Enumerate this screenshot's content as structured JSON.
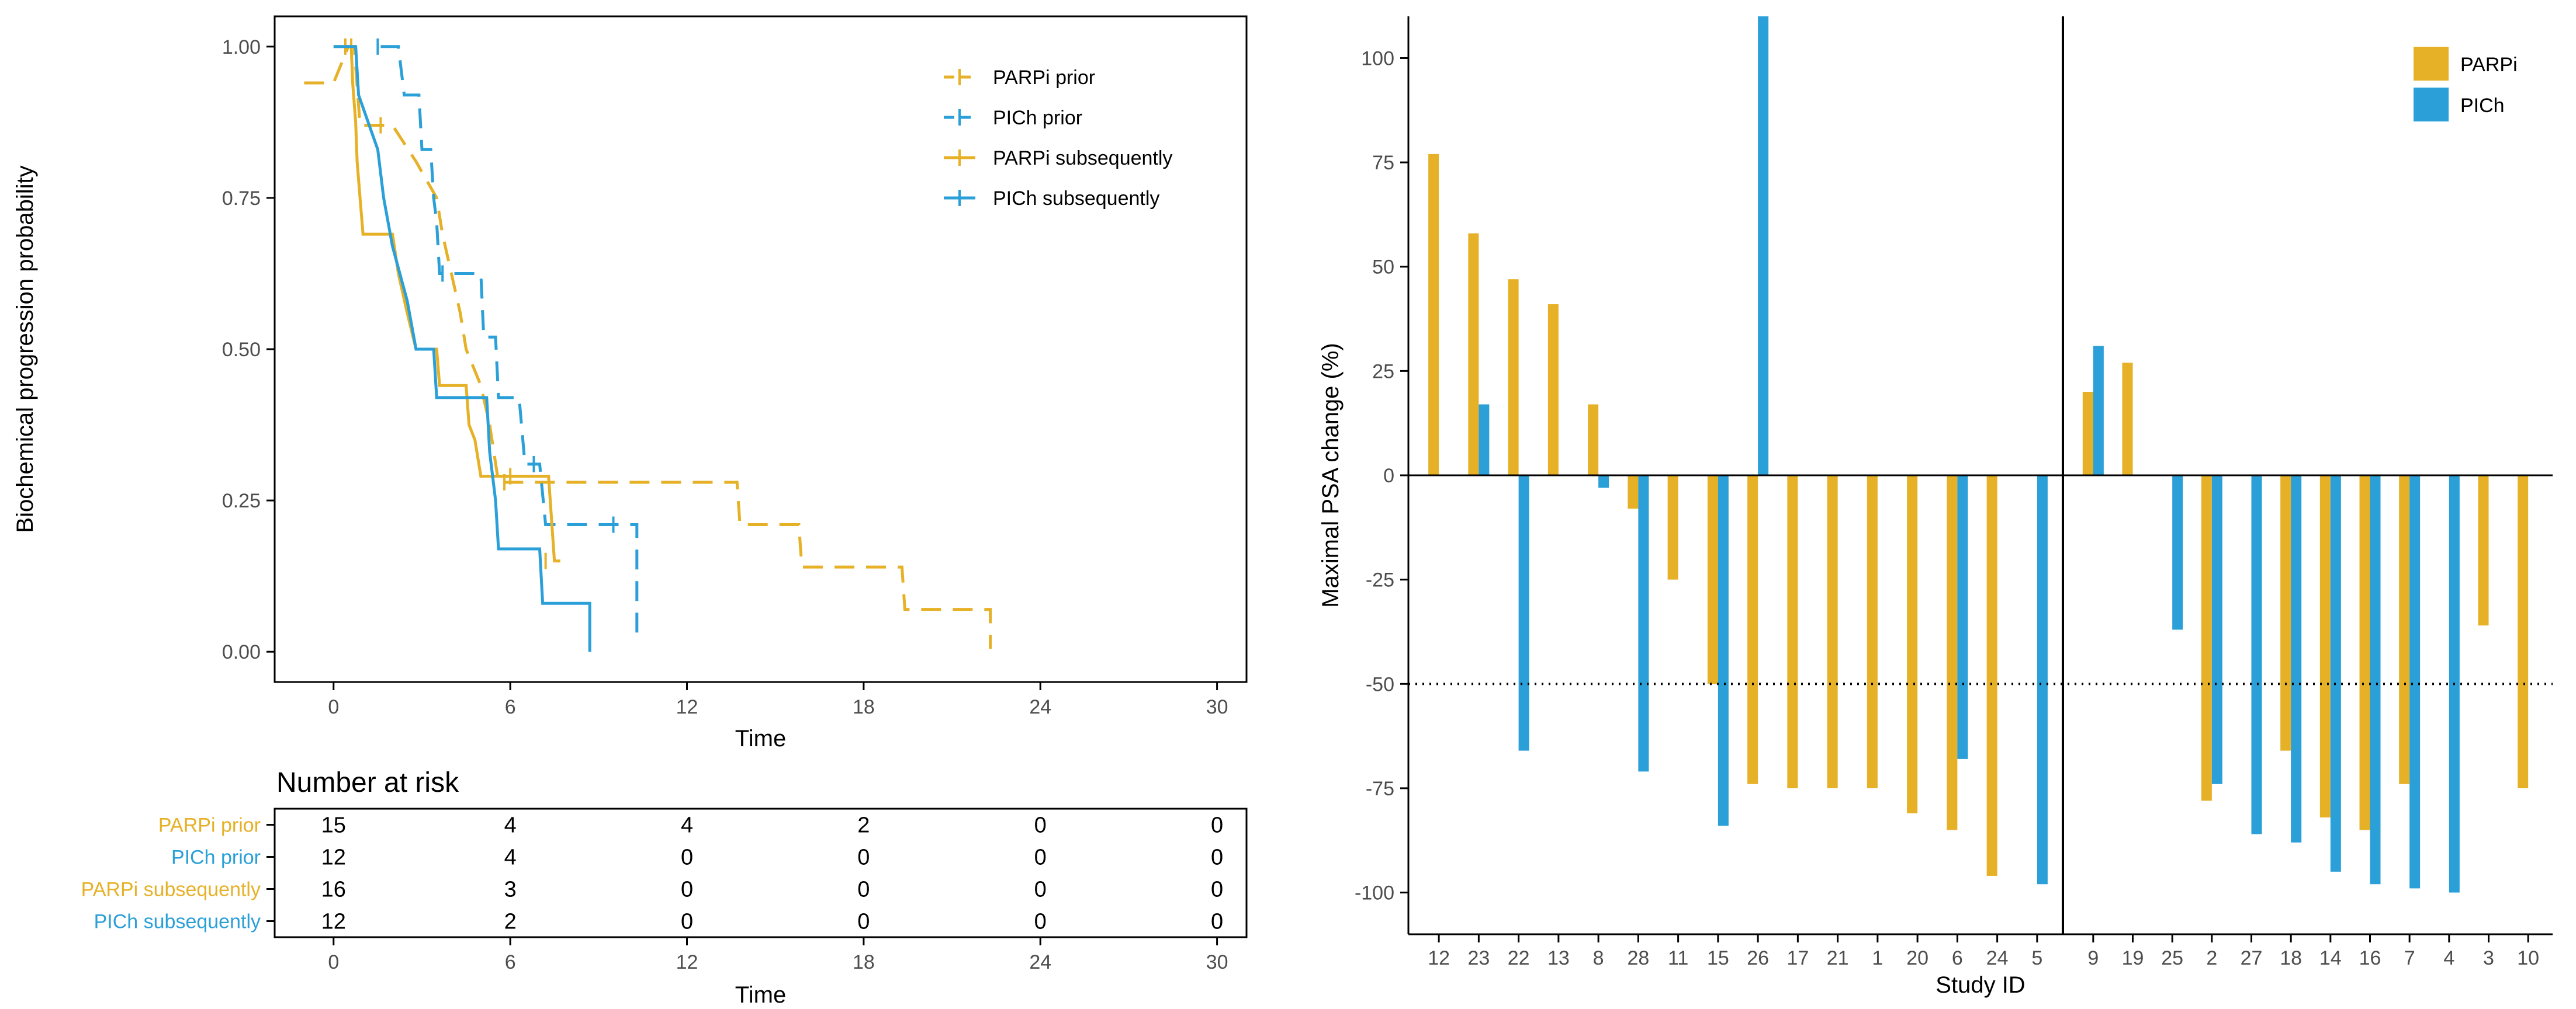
{
  "colors": {
    "parpi": "#E6B127",
    "pich": "#2A9FD8",
    "parpi_label": "#E6B127",
    "pich_label": "#2A9FD8",
    "axis": "#000000",
    "tick_text": "#4d4d4d"
  },
  "chart_data": [
    {
      "type": "line",
      "subtype": "kaplan-meier",
      "title": "",
      "xlabel": "Time",
      "ylabel": "Biochemical progression probability",
      "xlim": [
        -2,
        31
      ],
      "ylim": [
        -0.05,
        1.05
      ],
      "xticks": [
        0,
        6,
        12,
        18,
        24,
        30
      ],
      "yticks": [
        0.0,
        0.25,
        0.5,
        0.75,
        1.0
      ],
      "ytick_labels": [
        "0.00",
        "0.25",
        "0.50",
        "0.75",
        "1.00"
      ],
      "legend_position": "top-right",
      "series": [
        {
          "name": "PARPi prior",
          "color_key": "parpi",
          "dashed": true,
          "points": [
            [
              -1,
              0.94
            ],
            [
              0,
              0.94
            ],
            [
              0.5,
              1.0
            ],
            [
              0.7,
              1.0
            ],
            [
              0.9,
              0.87
            ],
            [
              2.0,
              0.87
            ],
            [
              2.8,
              0.81
            ],
            [
              3.5,
              0.75
            ],
            [
              3.7,
              0.69
            ],
            [
              4.0,
              0.625
            ],
            [
              4.3,
              0.56
            ],
            [
              4.5,
              0.5
            ],
            [
              5.0,
              0.44
            ],
            [
              5.3,
              0.375
            ],
            [
              5.6,
              0.28
            ],
            [
              13.7,
              0.28
            ],
            [
              13.8,
              0.21
            ],
            [
              15.8,
              0.21
            ],
            [
              15.9,
              0.14
            ],
            [
              19.3,
              0.14
            ],
            [
              19.4,
              0.07
            ],
            [
              22.3,
              0.07
            ],
            [
              22.3,
              0.005
            ]
          ],
          "censor": [
            [
              0.6,
              1.0
            ],
            [
              1.6,
              0.87
            ],
            [
              5.8,
              0.28
            ]
          ]
        },
        {
          "name": "PICh prior",
          "color_key": "pich",
          "dashed": true,
          "points": [
            [
              1.6,
              1.0
            ],
            [
              2.2,
              1.0
            ],
            [
              2.4,
              0.92
            ],
            [
              2.9,
              0.92
            ],
            [
              3.0,
              0.83
            ],
            [
              3.3,
              0.83
            ],
            [
              3.4,
              0.75
            ],
            [
              3.5,
              0.71
            ],
            [
              3.6,
              0.625
            ],
            [
              5.0,
              0.625
            ],
            [
              5.1,
              0.52
            ],
            [
              5.5,
              0.52
            ],
            [
              5.6,
              0.42
            ],
            [
              6.3,
              0.42
            ],
            [
              6.5,
              0.31
            ],
            [
              7.0,
              0.31
            ],
            [
              7.2,
              0.21
            ],
            [
              10.3,
              0.21
            ],
            [
              10.3,
              0.03
            ]
          ],
          "censor": [
            [
              1.5,
              1.0
            ],
            [
              3.7,
              0.625
            ],
            [
              6.8,
              0.31
            ],
            [
              9.5,
              0.21
            ]
          ]
        },
        {
          "name": "PARPi subsequently",
          "color_key": "parpi",
          "dashed": false,
          "points": [
            [
              0,
              1.0
            ],
            [
              0.6,
              1.0
            ],
            [
              0.65,
              0.94
            ],
            [
              0.75,
              0.875
            ],
            [
              0.8,
              0.81
            ],
            [
              0.9,
              0.75
            ],
            [
              1.0,
              0.69
            ],
            [
              2.0,
              0.69
            ],
            [
              2.2,
              0.625
            ],
            [
              2.5,
              0.56
            ],
            [
              2.8,
              0.5
            ],
            [
              3.5,
              0.5
            ],
            [
              3.6,
              0.44
            ],
            [
              4.5,
              0.44
            ],
            [
              4.6,
              0.375
            ],
            [
              4.8,
              0.35
            ],
            [
              5.0,
              0.29
            ],
            [
              7.3,
              0.29
            ],
            [
              7.5,
              0.15
            ],
            [
              7.7,
              0.15
            ]
          ],
          "censor": [
            [
              0.4,
              1.0
            ],
            [
              6.0,
              0.29
            ],
            [
              7.2,
              0.15
            ]
          ]
        },
        {
          "name": "PICh subsequently",
          "color_key": "pich",
          "dashed": false,
          "points": [
            [
              0,
              1.0
            ],
            [
              0.75,
              1.0
            ],
            [
              0.85,
              0.92
            ],
            [
              1.5,
              0.83
            ],
            [
              1.7,
              0.75
            ],
            [
              2.0,
              0.67
            ],
            [
              2.5,
              0.58
            ],
            [
              2.8,
              0.5
            ],
            [
              3.4,
              0.5
            ],
            [
              3.5,
              0.42
            ],
            [
              5.2,
              0.42
            ],
            [
              5.3,
              0.33
            ],
            [
              5.5,
              0.25
            ],
            [
              5.6,
              0.17
            ],
            [
              7.0,
              0.17
            ],
            [
              7.1,
              0.08
            ],
            [
              8.7,
              0.08
            ],
            [
              8.7,
              0.0
            ]
          ],
          "censor": []
        }
      ],
      "risk_table": {
        "title": "Number at risk",
        "xlabel": "Time",
        "time_points": [
          0,
          6,
          12,
          18,
          24,
          30
        ],
        "rows": [
          {
            "label": "PARPi prior",
            "color_key": "parpi_label",
            "values": [
              15,
              4,
              4,
              2,
              0,
              0
            ]
          },
          {
            "label": "PICh prior",
            "color_key": "pich_label",
            "values": [
              12,
              4,
              0,
              0,
              0,
              0
            ]
          },
          {
            "label": "PARPi subsequently",
            "color_key": "parpi_label",
            "values": [
              16,
              3,
              0,
              0,
              0,
              0
            ]
          },
          {
            "label": "PICh subsequently",
            "color_key": "pich_label",
            "values": [
              12,
              2,
              0,
              0,
              0,
              0
            ]
          }
        ]
      }
    },
    {
      "type": "bar",
      "title": "",
      "xlabel": "Study ID",
      "ylabel": "Maximal PSA change (%)",
      "ylim": [
        -110,
        110
      ],
      "yticks": [
        100,
        75,
        50,
        25,
        0,
        -25,
        -50,
        -75,
        -100
      ],
      "reference_line": -50,
      "legend_position": "top-right",
      "series_names": [
        "PARPi",
        "PICh"
      ],
      "panels": [
        {
          "categories": [
            "12",
            "23",
            "22",
            "13",
            "8",
            "28",
            "11",
            "15",
            "26",
            "17",
            "21",
            "1",
            "20",
            "6",
            "24",
            "5"
          ],
          "parpi": [
            77,
            58,
            47,
            41,
            17,
            -8,
            -25,
            -50,
            -74,
            -75,
            -75,
            -75,
            -81,
            -85,
            -96,
            null
          ],
          "pich": [
            null,
            17,
            -66,
            null,
            -3,
            -71,
            null,
            -84,
            110,
            null,
            null,
            null,
            null,
            -68,
            null,
            -98
          ]
        },
        {
          "categories": [
            "9",
            "19",
            "25",
            "2",
            "27",
            "18",
            "14",
            "16",
            "7",
            "4",
            "3",
            "10"
          ],
          "parpi": [
            20,
            27,
            null,
            -78,
            null,
            -66,
            -82,
            -85,
            -74,
            null,
            -36,
            -75
          ],
          "pich": [
            31,
            null,
            -37,
            -74,
            -86,
            -88,
            -95,
            -98,
            -99,
            -100,
            null,
            null
          ]
        }
      ]
    }
  ]
}
